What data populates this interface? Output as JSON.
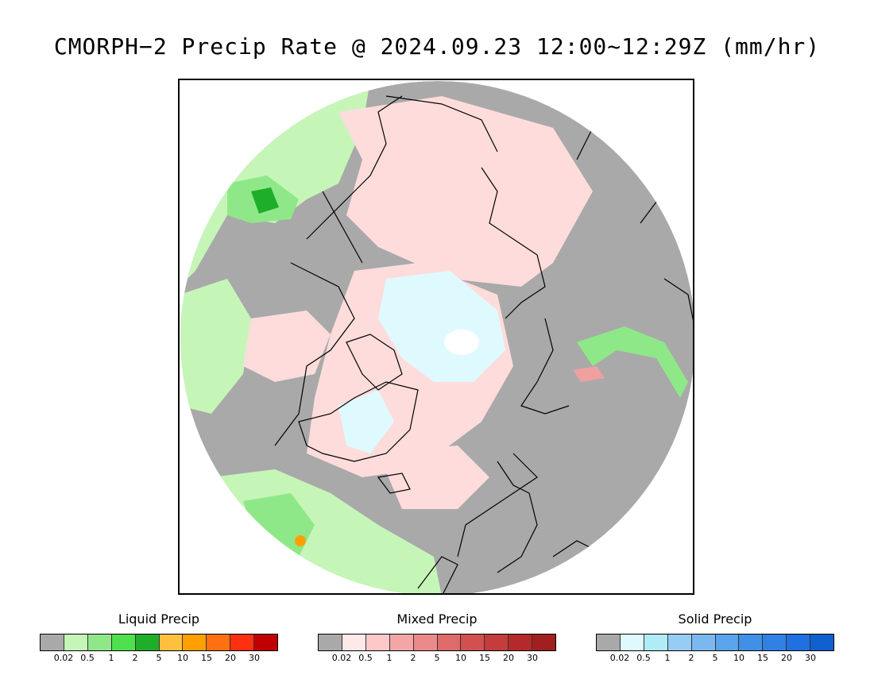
{
  "title": "CMORPH−2 Precip Rate @ 2024.09.23 12:00~12:29Z (mm/hr)",
  "map": {
    "projection": "north-polar-stereographic",
    "colors": {
      "background": "#a9a9a9",
      "light_green": "#c6f5b8",
      "green": "#8fe888",
      "dark_green": "#1fae2a",
      "pink": "#ffdcdc",
      "red_pink": "#f0a0a0",
      "cyan": "#dffaff",
      "orange": "#ffa000",
      "coast": "#000000"
    }
  },
  "legends": [
    {
      "title": "Liquid Precip",
      "colors": [
        "#a9a9a9",
        "#c6f5b8",
        "#8fe888",
        "#4fe04f",
        "#1fae2a",
        "#ffc040",
        "#ffa000",
        "#ff7010",
        "#ff3010",
        "#c00000"
      ],
      "ticks": [
        "0.02",
        "0.5",
        "1",
        "2",
        "5",
        "10",
        "15",
        "20",
        "30"
      ]
    },
    {
      "title": "Mixed Precip",
      "colors": [
        "#a9a9a9",
        "#ffe8e8",
        "#ffc8c8",
        "#f4a6a6",
        "#ea8a8a",
        "#de6a6a",
        "#d35050",
        "#c43c3c",
        "#b42a2a",
        "#a02020"
      ],
      "ticks": [
        "0.02",
        "0.5",
        "1",
        "2",
        "5",
        "10",
        "15",
        "20",
        "30"
      ]
    },
    {
      "title": "Solid Precip",
      "colors": [
        "#a9a9a9",
        "#dffaff",
        "#b0ecf8",
        "#96ccf5",
        "#7cb8f0",
        "#5aa4ec",
        "#4090e8",
        "#3080e6",
        "#2070e0",
        "#1060d0"
      ],
      "ticks": [
        "0.02",
        "0.5",
        "1",
        "2",
        "5",
        "10",
        "15",
        "20",
        "30"
      ]
    }
  ]
}
